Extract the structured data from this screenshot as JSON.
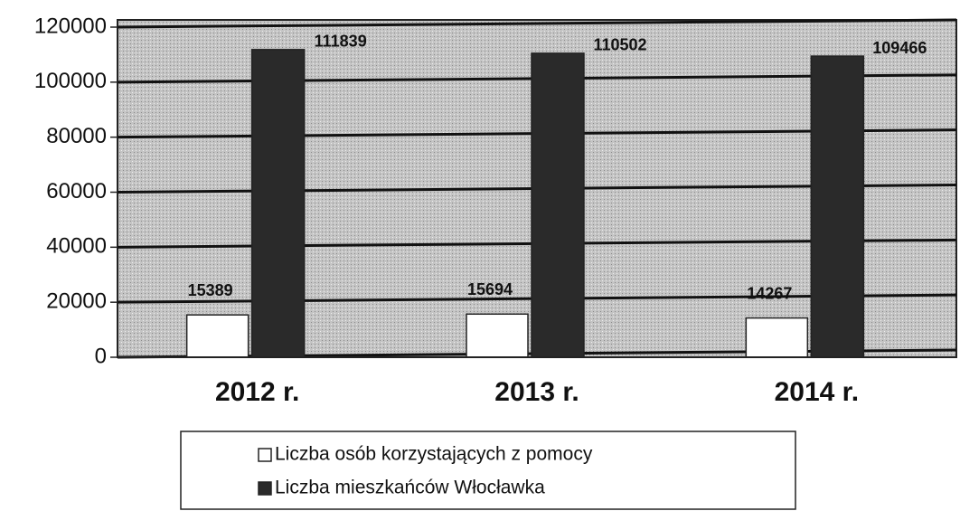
{
  "chart_data": {
    "type": "bar",
    "categories": [
      "2012 r.",
      "2013 r.",
      "2014 r."
    ],
    "series": [
      {
        "name": "Liczba osób korzystających z pomocy",
        "color": "#ffffff",
        "values": [
          15389,
          15694,
          14267
        ]
      },
      {
        "name": "Liczba mieszkańców Włocławka",
        "color": "#2a2a2a",
        "values": [
          111839,
          110502,
          109466
        ]
      }
    ],
    "ylim": [
      0,
      120000
    ],
    "yticks": [
      0,
      20000,
      40000,
      60000,
      80000,
      100000,
      120000
    ],
    "grid": true
  }
}
